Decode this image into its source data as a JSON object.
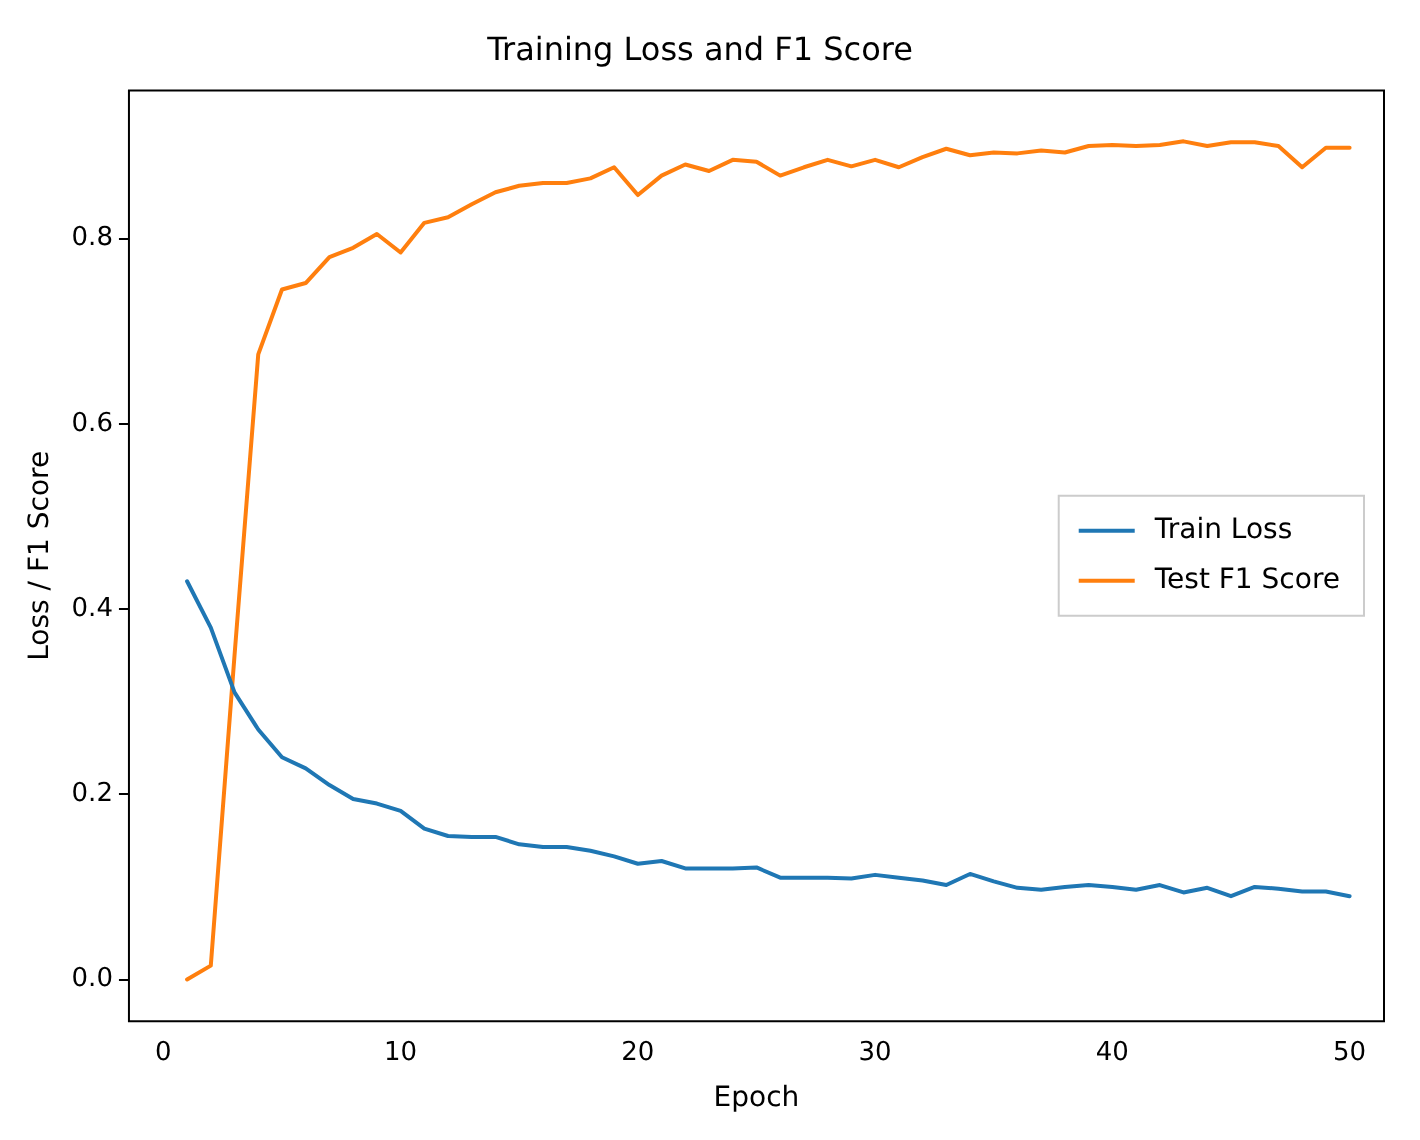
{
  "chart_data": {
    "type": "line",
    "title": "Training Loss and F1 Score",
    "xlabel": "Epoch",
    "ylabel": "Loss / F1 Score",
    "x": [
      1,
      2,
      3,
      4,
      5,
      6,
      7,
      8,
      9,
      10,
      11,
      12,
      13,
      14,
      15,
      16,
      17,
      18,
      19,
      20,
      21,
      22,
      23,
      24,
      25,
      26,
      27,
      28,
      29,
      30,
      31,
      32,
      33,
      34,
      35,
      36,
      37,
      38,
      39,
      40,
      41,
      42,
      43,
      44,
      45,
      46,
      47,
      48,
      49,
      50
    ],
    "series": [
      {
        "name": "Train Loss",
        "color": "#1f77b4",
        "values": [
          0.43,
          0.38,
          0.31,
          0.27,
          0.24,
          0.228,
          0.21,
          0.195,
          0.19,
          0.182,
          0.163,
          0.155,
          0.154,
          0.154,
          0.146,
          0.143,
          0.143,
          0.139,
          0.133,
          0.125,
          0.128,
          0.12,
          0.12,
          0.12,
          0.121,
          0.11,
          0.11,
          0.11,
          0.109,
          0.113,
          0.11,
          0.107,
          0.102,
          0.114,
          0.106,
          0.099,
          0.097,
          0.1,
          0.102,
          0.1,
          0.097,
          0.102,
          0.094,
          0.099,
          0.09,
          0.1,
          0.098,
          0.095,
          0.095,
          0.09
        ]
      },
      {
        "name": "Test F1 Score",
        "color": "#ff7f0e",
        "values": [
          0.0,
          0.015,
          0.35,
          0.675,
          0.745,
          0.752,
          0.78,
          0.79,
          0.805,
          0.785,
          0.817,
          0.823,
          0.837,
          0.85,
          0.857,
          0.86,
          0.86,
          0.865,
          0.877,
          0.847,
          0.868,
          0.88,
          0.873,
          0.885,
          0.883,
          0.868,
          0.877,
          0.885,
          0.878,
          0.885,
          0.877,
          0.888,
          0.897,
          0.89,
          0.893,
          0.892,
          0.895,
          0.893,
          0.9,
          0.901,
          0.9,
          0.901,
          0.905,
          0.9,
          0.904,
          0.904,
          0.9,
          0.877,
          0.898,
          0.898
        ]
      }
    ],
    "xlim": [
      -1.45,
      51.45
    ],
    "xticks": [
      0,
      10,
      20,
      30,
      40,
      50
    ],
    "ylim": [
      -0.045,
      0.96
    ],
    "yticks": [
      {
        "value": 0,
        "label": "0.0"
      },
      {
        "value": 0.2,
        "label": "0.2"
      },
      {
        "value": 0.4,
        "label": "0.4"
      },
      {
        "value": 0.6,
        "label": "0.6"
      },
      {
        "value": 0.8,
        "label": "0.8"
      }
    ],
    "grid": false,
    "legend": "right",
    "marker": "none",
    "line_style": "solid"
  }
}
